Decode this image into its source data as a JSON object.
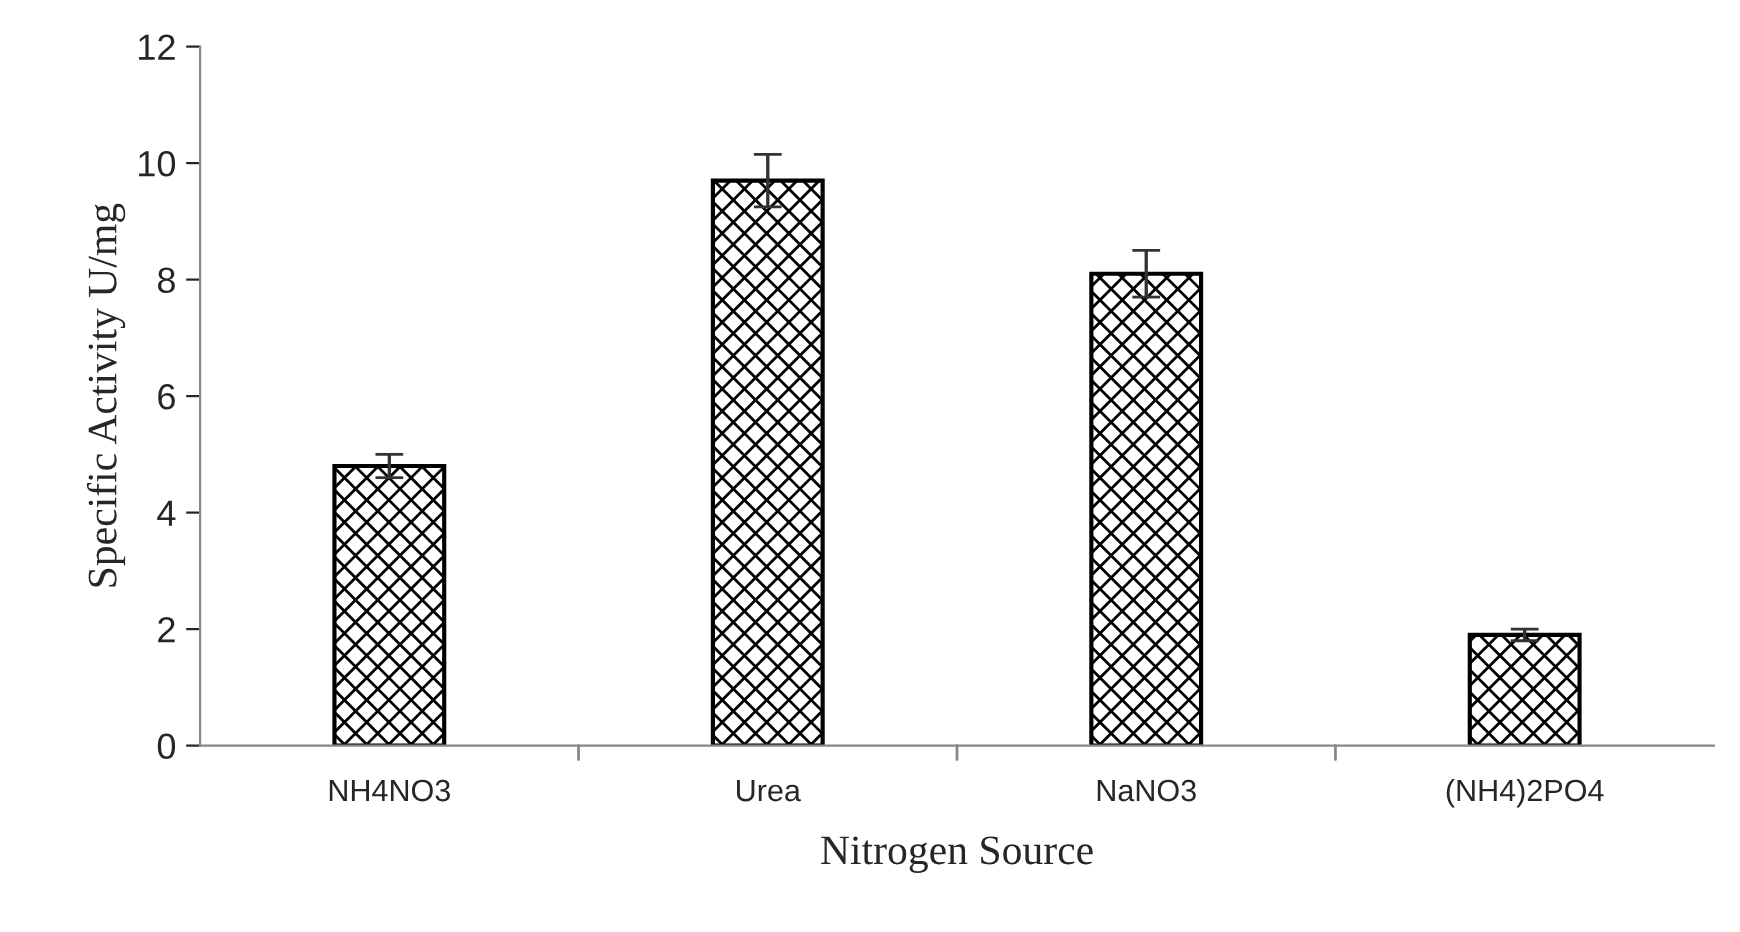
{
  "chart_data": {
    "type": "bar",
    "xlabel": "Nitrogen Source",
    "ylabel": "Specific Activity U/mg",
    "categories": [
      "NH4NO3",
      "Urea",
      "NaNO3",
      "(NH4)2PO4"
    ],
    "values": [
      4.8,
      9.7,
      8.1,
      1.9
    ],
    "errors": [
      0.2,
      0.45,
      0.4,
      0.1
    ],
    "ylim": [
      0,
      12
    ],
    "yticks": [
      0,
      2,
      4,
      6,
      8,
      10,
      12
    ],
    "grid": false
  }
}
